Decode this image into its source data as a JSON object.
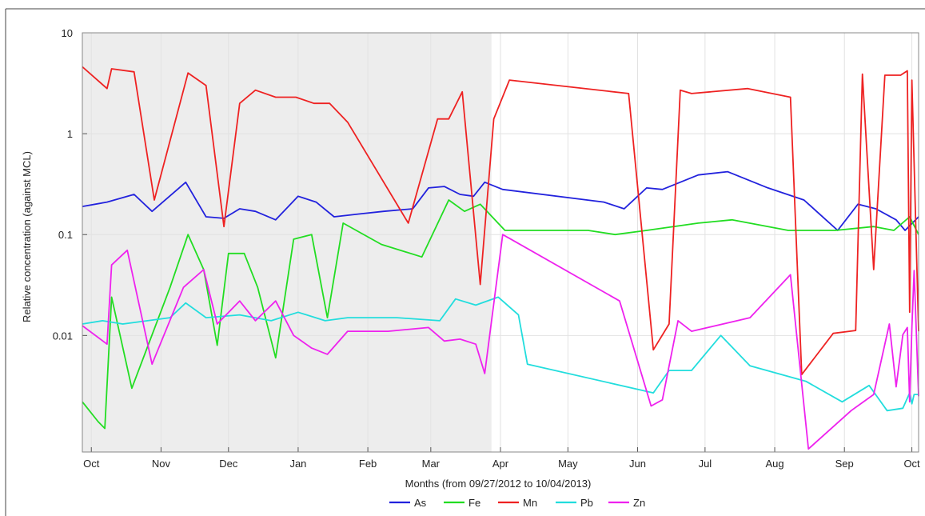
{
  "chart_data": {
    "type": "line",
    "title": "",
    "xlabel": "Months (from 09/27/2012 to 10/04/2013)",
    "ylabel": "Relative concentration (against MCL)",
    "y_scale": "log",
    "ylim": [
      0.0007,
      10
    ],
    "xlim": [
      "2012-09-27",
      "2013-10-04"
    ],
    "y_ticks": [
      {
        "value": 10,
        "label": "10"
      },
      {
        "value": 1,
        "label": "1"
      },
      {
        "value": 0.1,
        "label": "0.1"
      },
      {
        "value": 0.01,
        "label": "0.01"
      }
    ],
    "x_ticks": [
      {
        "date": "2012-10-01",
        "label": "Oct"
      },
      {
        "date": "2012-11-01",
        "label": "Nov"
      },
      {
        "date": "2012-12-01",
        "label": "Dec"
      },
      {
        "date": "2013-01-01",
        "label": "Jan"
      },
      {
        "date": "2013-02-01",
        "label": "Feb"
      },
      {
        "date": "2013-03-01",
        "label": "Mar"
      },
      {
        "date": "2013-04-01",
        "label": "Apr"
      },
      {
        "date": "2013-05-01",
        "label": "May"
      },
      {
        "date": "2013-06-01",
        "label": "Jun"
      },
      {
        "date": "2013-07-01",
        "label": "Jul"
      },
      {
        "date": "2013-08-01",
        "label": "Aug"
      },
      {
        "date": "2013-09-01",
        "label": "Sep"
      },
      {
        "date": "2013-10-01",
        "label": "Oct"
      }
    ],
    "shaded_period": [
      "2012-09-27",
      "2013-03-28"
    ],
    "grid": true,
    "legend_position": "bottom-center",
    "series": [
      {
        "name": "As",
        "color": "#2222dd",
        "points": [
          [
            "2012-09-27",
            0.19
          ],
          [
            "2012-10-08",
            0.21
          ],
          [
            "2012-10-20",
            0.25
          ],
          [
            "2012-10-28",
            0.17
          ],
          [
            "2012-11-12",
            0.33
          ],
          [
            "2012-11-21",
            0.15
          ],
          [
            "2012-11-29",
            0.145
          ],
          [
            "2012-12-06",
            0.18
          ],
          [
            "2012-12-13",
            0.17
          ],
          [
            "2012-12-22",
            0.14
          ],
          [
            "2013-01-01",
            0.24
          ],
          [
            "2013-01-09",
            0.21
          ],
          [
            "2013-01-17",
            0.15
          ],
          [
            "2013-01-28",
            0.16
          ],
          [
            "2013-02-08",
            0.17
          ],
          [
            "2013-02-21",
            0.18
          ],
          [
            "2013-02-28",
            0.29
          ],
          [
            "2013-03-07",
            0.3
          ],
          [
            "2013-03-14",
            0.25
          ],
          [
            "2013-03-20",
            0.24
          ],
          [
            "2013-03-25",
            0.33
          ],
          [
            "2013-04-02",
            0.28
          ],
          [
            "2013-05-17",
            0.21
          ],
          [
            "2013-05-26",
            0.18
          ],
          [
            "2013-06-05",
            0.29
          ],
          [
            "2013-06-12",
            0.28
          ],
          [
            "2013-06-28",
            0.39
          ],
          [
            "2013-07-11",
            0.42
          ],
          [
            "2013-07-29",
            0.29
          ],
          [
            "2013-08-14",
            0.22
          ],
          [
            "2013-08-29",
            0.11
          ],
          [
            "2013-09-07",
            0.2
          ],
          [
            "2013-09-15",
            0.18
          ],
          [
            "2013-09-24",
            0.14
          ],
          [
            "2013-09-28",
            0.11
          ],
          [
            "2013-10-04",
            0.15
          ]
        ]
      },
      {
        "name": "Fe",
        "color": "#22dd22",
        "points": [
          [
            "2012-09-27",
            0.0022
          ],
          [
            "2012-10-04",
            0.0014
          ],
          [
            "2012-10-07",
            0.0012
          ],
          [
            "2012-10-10",
            0.024
          ],
          [
            "2012-10-19",
            0.003
          ],
          [
            "2012-11-05",
            0.03
          ],
          [
            "2012-11-13",
            0.1
          ],
          [
            "2012-11-20",
            0.045
          ],
          [
            "2012-11-26",
            0.008
          ],
          [
            "2012-12-01",
            0.065
          ],
          [
            "2012-12-08",
            0.065
          ],
          [
            "2012-12-14",
            0.03
          ],
          [
            "2012-12-22",
            0.006
          ],
          [
            "2012-12-30",
            0.09
          ],
          [
            "2013-01-07",
            0.1
          ],
          [
            "2013-01-14",
            0.015
          ],
          [
            "2013-01-21",
            0.13
          ],
          [
            "2013-02-07",
            0.08
          ],
          [
            "2013-02-25",
            0.06
          ],
          [
            "2013-03-09",
            0.22
          ],
          [
            "2013-03-16",
            0.17
          ],
          [
            "2013-03-23",
            0.2
          ],
          [
            "2013-04-03",
            0.11
          ],
          [
            "2013-05-10",
            0.11
          ],
          [
            "2013-05-22",
            0.1
          ],
          [
            "2013-06-05",
            0.11
          ],
          [
            "2013-06-28",
            0.13
          ],
          [
            "2013-07-13",
            0.14
          ],
          [
            "2013-08-07",
            0.11
          ],
          [
            "2013-08-28",
            0.11
          ],
          [
            "2013-09-14",
            0.12
          ],
          [
            "2013-09-23",
            0.11
          ],
          [
            "2013-09-30",
            0.15
          ],
          [
            "2013-10-04",
            0.1
          ]
        ]
      },
      {
        "name": "Mn",
        "color": "#ee2222",
        "points": [
          [
            "2012-09-27",
            4.6
          ],
          [
            "2012-10-08",
            2.8
          ],
          [
            "2012-10-10",
            4.4
          ],
          [
            "2012-10-20",
            4.1
          ],
          [
            "2012-10-29",
            0.22
          ],
          [
            "2012-11-13",
            4.0
          ],
          [
            "2012-11-21",
            3.0
          ],
          [
            "2012-11-29",
            0.12
          ],
          [
            "2012-12-06",
            2.0
          ],
          [
            "2012-12-13",
            2.7
          ],
          [
            "2012-12-22",
            2.3
          ],
          [
            "2012-12-31",
            2.3
          ],
          [
            "2013-01-08",
            2.0
          ],
          [
            "2013-01-15",
            2.0
          ],
          [
            "2013-01-23",
            1.3
          ],
          [
            "2013-02-19",
            0.13
          ],
          [
            "2013-03-04",
            1.4
          ],
          [
            "2013-03-09",
            1.4
          ],
          [
            "2013-03-15",
            2.6
          ],
          [
            "2013-03-23",
            0.032
          ],
          [
            "2013-03-29",
            1.4
          ],
          [
            "2013-04-05",
            3.4
          ],
          [
            "2013-05-28",
            2.5
          ],
          [
            "2013-06-08",
            0.0072
          ],
          [
            "2013-06-15",
            0.013
          ],
          [
            "2013-06-20",
            2.7
          ],
          [
            "2013-06-25",
            2.5
          ],
          [
            "2013-07-20",
            2.8
          ],
          [
            "2013-08-08",
            2.3
          ],
          [
            "2013-08-13",
            0.0041
          ],
          [
            "2013-08-27",
            0.0105
          ],
          [
            "2013-09-06",
            0.0112
          ],
          [
            "2013-09-09",
            3.9
          ],
          [
            "2013-09-14",
            0.045
          ],
          [
            "2013-09-19",
            3.8
          ],
          [
            "2013-09-26",
            3.8
          ],
          [
            "2013-09-29",
            4.2
          ],
          [
            "2013-09-30",
            0.017
          ],
          [
            "2013-10-01",
            3.4
          ],
          [
            "2013-10-04",
            0.011
          ]
        ]
      },
      {
        "name": "Pb",
        "color": "#22dddd",
        "points": [
          [
            "2012-09-27",
            0.013
          ],
          [
            "2012-10-06",
            0.014
          ],
          [
            "2012-10-15",
            0.013
          ],
          [
            "2012-11-05",
            0.015
          ],
          [
            "2012-11-12",
            0.021
          ],
          [
            "2012-11-21",
            0.015
          ],
          [
            "2012-12-06",
            0.016
          ],
          [
            "2012-12-20",
            0.014
          ],
          [
            "2013-01-01",
            0.017
          ],
          [
            "2013-01-13",
            0.014
          ],
          [
            "2013-01-23",
            0.015
          ],
          [
            "2013-02-14",
            0.015
          ],
          [
            "2013-03-05",
            0.014
          ],
          [
            "2013-03-12",
            0.023
          ],
          [
            "2013-03-21",
            0.02
          ],
          [
            "2013-03-31",
            0.024
          ],
          [
            "2013-04-09",
            0.016
          ],
          [
            "2013-04-13",
            0.0052
          ],
          [
            "2013-06-08",
            0.0027
          ],
          [
            "2013-06-15",
            0.0045
          ],
          [
            "2013-06-25",
            0.0045
          ],
          [
            "2013-07-08",
            0.01
          ],
          [
            "2013-07-21",
            0.005
          ],
          [
            "2013-08-15",
            0.0035
          ],
          [
            "2013-08-31",
            0.0022
          ],
          [
            "2013-09-12",
            0.0032
          ],
          [
            "2013-09-20",
            0.0018
          ],
          [
            "2013-09-27",
            0.0019
          ],
          [
            "2013-09-30",
            0.0027
          ],
          [
            "2013-10-01",
            0.0021
          ],
          [
            "2013-10-02",
            0.0026
          ],
          [
            "2013-10-04",
            0.0026
          ]
        ]
      },
      {
        "name": "Zn",
        "color": "#ee22ee",
        "points": [
          [
            "2012-09-27",
            0.0125
          ],
          [
            "2012-10-08",
            0.0082
          ],
          [
            "2012-10-10",
            0.05
          ],
          [
            "2012-10-17",
            0.07
          ],
          [
            "2012-10-28",
            0.0052
          ],
          [
            "2012-11-11",
            0.03
          ],
          [
            "2012-11-20",
            0.045
          ],
          [
            "2012-11-26",
            0.013
          ],
          [
            "2012-12-06",
            0.022
          ],
          [
            "2012-12-13",
            0.014
          ],
          [
            "2012-12-22",
            0.022
          ],
          [
            "2012-12-30",
            0.01
          ],
          [
            "2013-01-07",
            0.0075
          ],
          [
            "2013-01-14",
            0.0065
          ],
          [
            "2013-01-23",
            0.011
          ],
          [
            "2013-02-10",
            0.011
          ],
          [
            "2013-02-28",
            0.012
          ],
          [
            "2013-03-07",
            0.0088
          ],
          [
            "2013-03-14",
            0.0092
          ],
          [
            "2013-03-21",
            0.0082
          ],
          [
            "2013-03-25",
            0.0042
          ],
          [
            "2013-04-02",
            0.1
          ],
          [
            "2013-05-24",
            0.022
          ],
          [
            "2013-06-07",
            0.002
          ],
          [
            "2013-06-12",
            0.0023
          ],
          [
            "2013-06-19",
            0.014
          ],
          [
            "2013-06-25",
            0.011
          ],
          [
            "2013-07-21",
            0.015
          ],
          [
            "2013-08-08",
            0.04
          ],
          [
            "2013-08-16",
            0.00075
          ],
          [
            "2013-09-04",
            0.0018
          ],
          [
            "2013-09-14",
            0.0026
          ],
          [
            "2013-09-21",
            0.013
          ],
          [
            "2013-09-24",
            0.0031
          ],
          [
            "2013-09-27",
            0.0102
          ],
          [
            "2013-09-29",
            0.012
          ],
          [
            "2013-09-30",
            0.0022
          ],
          [
            "2013-10-01",
            0.012
          ],
          [
            "2013-10-02",
            0.044
          ],
          [
            "2013-10-04",
            0.0025
          ]
        ]
      }
    ]
  }
}
